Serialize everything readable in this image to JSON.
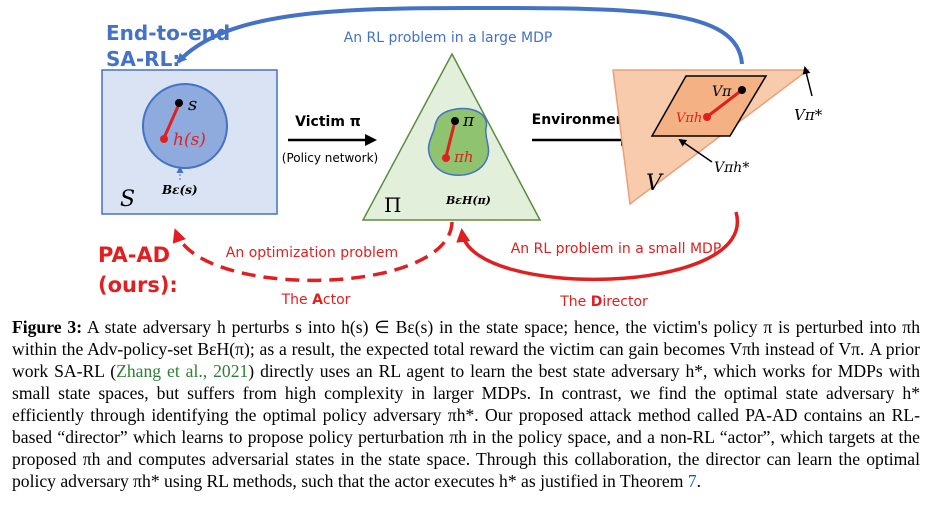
{
  "figure": {
    "sarl_label_line1": "End-to-end",
    "sarl_label_line2": "SA-RL:",
    "top_arrow_label": "An RL problem in a large MDP",
    "victim_label": "Victim π",
    "policy_network_label": "(Policy network)",
    "environment_label": "Environment",
    "state_space_symbol": "S",
    "state_s": "s",
    "state_hs": "h(s)",
    "ball_label": "Bε(s)",
    "policy_space_symbol": "Π",
    "policy_pi": "π",
    "policy_pih": "πh",
    "adv_policy_set_label": "BεH(π)",
    "value_space_symbol": "V",
    "value_vpi": "Vπ",
    "value_vpih": "Vπh",
    "value_vpistar": "Vπ*",
    "value_vpihstar": "Vπh*",
    "paad_label_line1": "PA-AD",
    "paad_label_line2": "(ours):",
    "optimization_label": "An optimization problem",
    "small_mdp_label": "An RL problem in a small MDP",
    "actor_prefix": "The ",
    "actor_bold": "A",
    "actor_suffix": "ctor",
    "director_prefix": "The ",
    "director_bold": "D",
    "director_suffix": "irector"
  },
  "caption": {
    "label": "Figure 3:",
    "text_1": " A state adversary h perturbs s into h(s) ∈ Bε(s) in the state space; hence, the victim's policy π is perturbed into πh within the Adv-policy-set BεH(π); as a result, the expected total reward the victim can gain becomes Vπh instead of Vπ. A prior work SA-RL (",
    "citation": "Zhang et al., 2021",
    "text_2": ") directly uses an RL agent to learn the best state adversary h*, which works for MDPs with small state spaces, but suffers from high complexity in larger MDPs. In contrast, we find the optimal state adversary h* efficiently through identifying the optimal policy adversary πh*. Our proposed attack method called PA-AD contains an RL-based “director” which learns to propose policy perturbation πh in the policy space, and a non-RL “actor”, which targets at the proposed πh and computes adversarial states in the state space. Through this collaboration, the director can learn the optimal policy adversary πh* using RL methods, such that the actor executes h* as justified in Theorem ",
    "theorem_ref": "7",
    "text_3": "."
  },
  "colors": {
    "blue": "#4472c4",
    "red": "#e02020",
    "green_tri": "#e2efda",
    "green_blob": "#8fc36f",
    "orange_tri": "#f8cbad",
    "orange_rhombus": "#f4b183",
    "box_fill": "#dae3f3",
    "circle_fill": "#8faadc"
  }
}
